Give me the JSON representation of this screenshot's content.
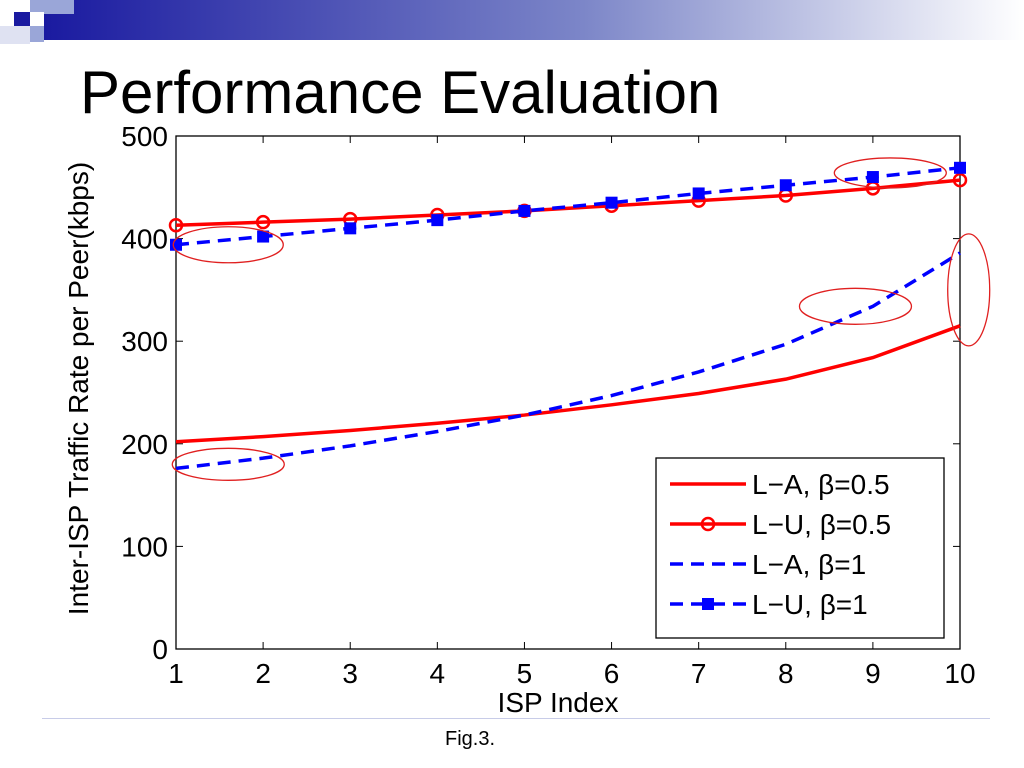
{
  "slide": {
    "title": "Performance Evaluation",
    "caption": "Fig.3."
  },
  "colors": {
    "accent_dark": "#1a1aa0",
    "accent_light": "#9aa6d8",
    "series_red": "#ff0000",
    "series_blue": "#0000ff",
    "highlight_ellipse": "#e02020"
  },
  "chart_data": {
    "type": "line",
    "xlabel": "ISP Index",
    "ylabel": "Inter-ISP Traffic Rate per Peer(kbps)",
    "xlim": [
      1,
      10
    ],
    "ylim": [
      0,
      500
    ],
    "xticks": [
      1,
      2,
      3,
      4,
      5,
      6,
      7,
      8,
      9,
      10
    ],
    "yticks": [
      0,
      100,
      200,
      300,
      400,
      500
    ],
    "grid": false,
    "legend_position": "bottom-right",
    "x": [
      1,
      2,
      3,
      4,
      5,
      6,
      7,
      8,
      9,
      10
    ],
    "series": [
      {
        "name": "L−A, β=0.5",
        "color": "#ff0000",
        "style": "solid",
        "marker": "none",
        "values": [
          202,
          207,
          213,
          220,
          228,
          238,
          249,
          263,
          284,
          315
        ]
      },
      {
        "name": "L−U, β=0.5",
        "color": "#ff0000",
        "style": "solid",
        "marker": "circle",
        "values": [
          413,
          416,
          419,
          423,
          427,
          432,
          437,
          442,
          449,
          457
        ]
      },
      {
        "name": "L−A, β=1",
        "color": "#0000ff",
        "style": "dashed",
        "marker": "none",
        "values": [
          176,
          186,
          198,
          212,
          228,
          247,
          270,
          297,
          334,
          386
        ]
      },
      {
        "name": "L−U, β=1",
        "color": "#0000ff",
        "style": "dashed",
        "marker": "square",
        "values": [
          394,
          402,
          410,
          418,
          427,
          435,
          444,
          452,
          460,
          469
        ]
      }
    ]
  }
}
